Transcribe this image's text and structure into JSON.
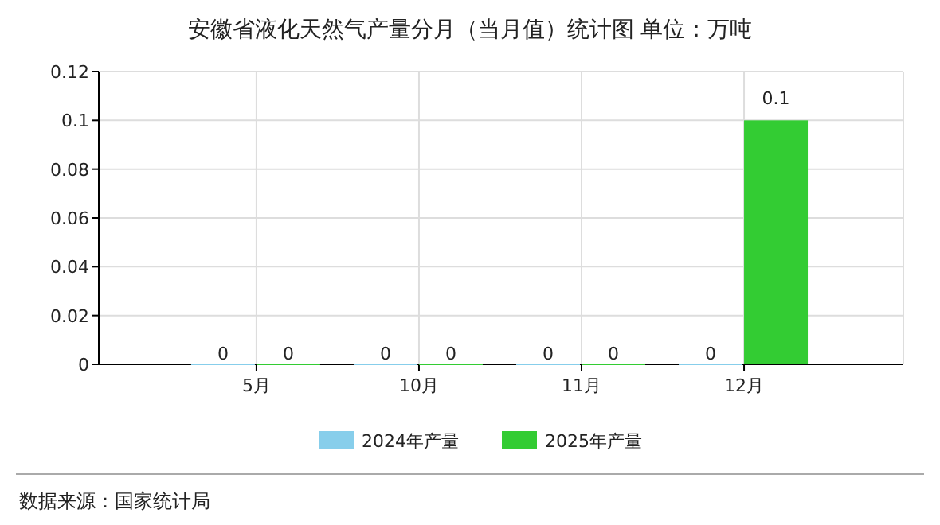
{
  "chart_data": {
    "type": "bar",
    "title": "安徽省液化天然气产量分月（当月值）统计图 单位：万吨",
    "categories": [
      "5月",
      "10月",
      "11月",
      "12月"
    ],
    "series": [
      {
        "name": "2024年产量",
        "color": "#87ceeb",
        "values": [
          0,
          0,
          0,
          0
        ]
      },
      {
        "name": "2025年产量",
        "color": "#33cc33",
        "values": [
          0,
          0,
          0,
          0.1
        ]
      }
    ],
    "ylim": [
      0,
      0.12
    ],
    "yticks": [
      0,
      0.02,
      0.04,
      0.06,
      0.08,
      0.1,
      0.12
    ],
    "grid": true,
    "data_labels": true,
    "legend": "bottom",
    "annotations": [
      "数据来源：国家统计局"
    ]
  }
}
